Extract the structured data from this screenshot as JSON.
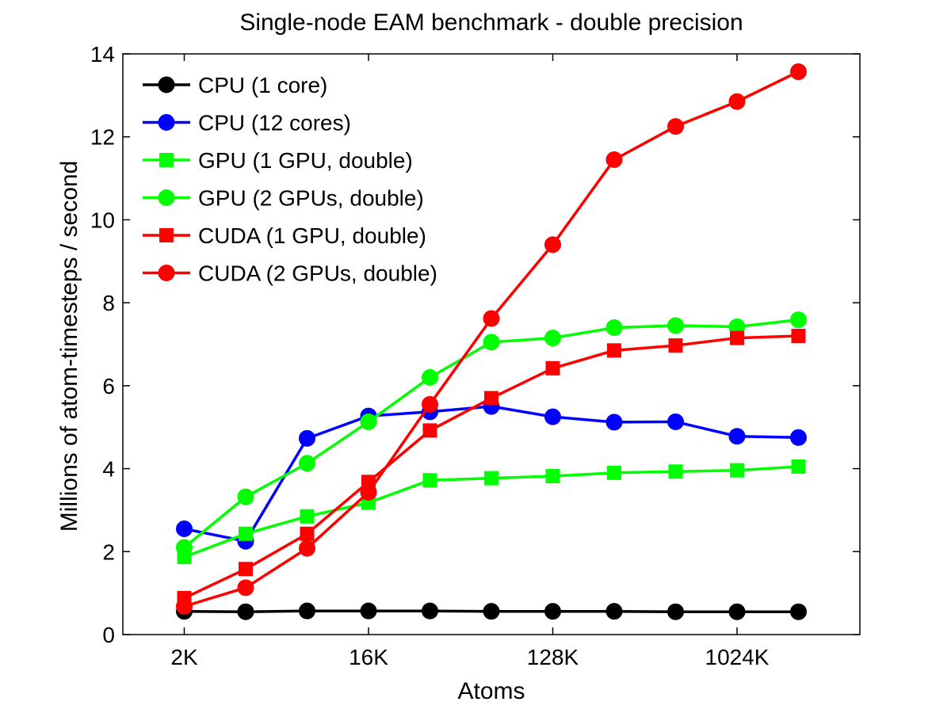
{
  "chart_data": {
    "type": "line",
    "title": "Single-node EAM benchmark - double precision",
    "xlabel": "Atoms",
    "ylabel": "Millions of atom-timesteps / second",
    "x_scale": "log2",
    "x": [
      2048,
      4096,
      8192,
      16384,
      32768,
      65536,
      131072,
      262144,
      524288,
      1048576,
      2097152
    ],
    "xticks": [
      2048,
      16384,
      131072,
      1048576
    ],
    "xtick_labels": [
      "2K",
      "16K",
      "128K",
      "1024K"
    ],
    "xlim": [
      1024,
      4194304
    ],
    "ylim": [
      0,
      14
    ],
    "yticks": [
      0,
      2,
      4,
      6,
      8,
      10,
      12,
      14
    ],
    "ytick_labels": [
      "0",
      "2",
      "4",
      "6",
      "8",
      "10",
      "12",
      "14"
    ],
    "grid": false,
    "legend_position": "top-left",
    "series": [
      {
        "name": "CPU (1 core)",
        "color": "#000000",
        "marker": "circle",
        "values": [
          0.56,
          0.55,
          0.57,
          0.57,
          0.57,
          0.56,
          0.56,
          0.56,
          0.55,
          0.55,
          0.55
        ]
      },
      {
        "name": "CPU (12 cores)",
        "color": "#0000ff",
        "marker": "circle",
        "values": [
          2.55,
          2.25,
          4.73,
          5.27,
          5.37,
          5.5,
          5.25,
          5.12,
          5.13,
          4.78,
          4.75
        ]
      },
      {
        "name": "GPU (1 GPU, double)",
        "color": "#00ff00",
        "marker": "square",
        "values": [
          1.87,
          2.43,
          2.85,
          3.18,
          3.72,
          3.77,
          3.82,
          3.9,
          3.93,
          3.96,
          4.05
        ]
      },
      {
        "name": "GPU (2 GPUs, double)",
        "color": "#00ff00",
        "marker": "circle",
        "values": [
          2.1,
          3.32,
          4.13,
          5.13,
          6.2,
          7.05,
          7.15,
          7.4,
          7.45,
          7.42,
          7.59
        ]
      },
      {
        "name": "CUDA (1 GPU, double)",
        "color": "#ff0000",
        "marker": "square",
        "values": [
          0.88,
          1.58,
          2.43,
          3.68,
          4.92,
          5.7,
          6.42,
          6.85,
          6.97,
          7.15,
          7.2
        ]
      },
      {
        "name": "CUDA (2 GPUs, double)",
        "color": "#ff0000",
        "marker": "circle",
        "values": [
          0.68,
          1.13,
          2.08,
          3.43,
          5.55,
          7.62,
          9.4,
          11.45,
          12.25,
          12.85,
          13.57
        ]
      }
    ]
  }
}
